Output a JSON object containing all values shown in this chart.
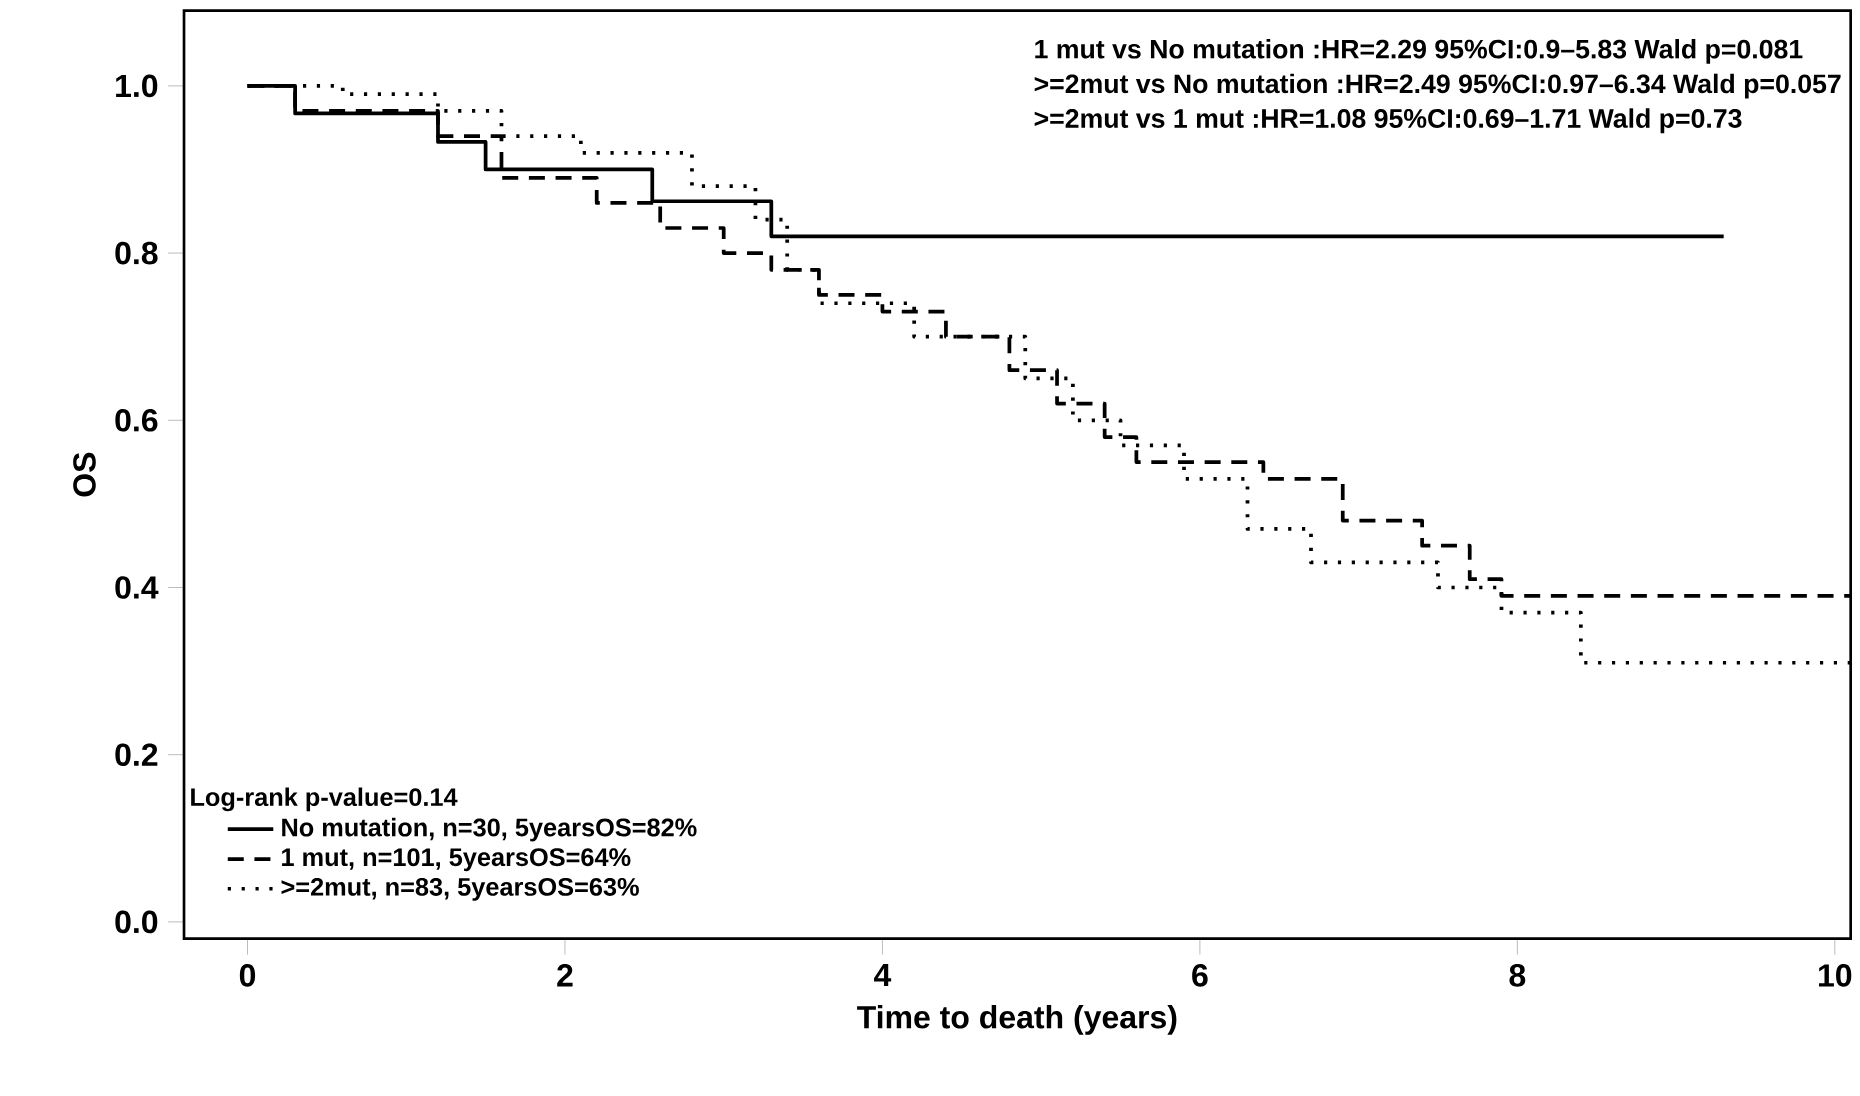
{
  "chart_data": {
    "type": "step",
    "xlabel": "Time to death (years)",
    "ylabel": "OS",
    "xlim": [
      -0.4,
      10.1
    ],
    "ylim": [
      -0.02,
      1.09
    ],
    "xticks": [
      0,
      2,
      4,
      6,
      8,
      10
    ],
    "yticks": [
      {
        "value": 0,
        "label": "0.0"
      },
      {
        "value": 0.2,
        "label": "0.2"
      },
      {
        "value": 0.4,
        "label": "0.4"
      },
      {
        "value": 0.6,
        "label": "0.6"
      },
      {
        "value": 0.8,
        "label": "0.8"
      },
      {
        "value": 1,
        "label": "1.0"
      }
    ],
    "legend": "bottom left",
    "legend_title": "Log-rank p-value=0.14",
    "grid": false,
    "series": [
      {
        "name": "No mutation, n=30, 5yearsOS=82%",
        "color": "#000000",
        "line_style": "solid",
        "x": [
          0,
          0.3,
          1.2,
          1.5,
          2.55,
          3.3,
          9.3
        ],
        "values": [
          1,
          0.967,
          0.933,
          0.9,
          0.862,
          0.82,
          0.82
        ]
      },
      {
        "name": "1 mut, n=101, 5yearsOS=64%",
        "color": "#000000",
        "line_style": "dashed",
        "x": [
          0,
          0.3,
          1.2,
          1.6,
          2.2,
          2.6,
          3.0,
          3.3,
          3.6,
          4.0,
          4.4,
          4.8,
          5.1,
          5.4,
          5.6,
          6.4,
          6.9,
          7.4,
          7.7,
          7.9,
          10.1
        ],
        "values": [
          1,
          0.97,
          0.94,
          0.89,
          0.86,
          0.83,
          0.8,
          0.78,
          0.75,
          0.73,
          0.7,
          0.66,
          0.62,
          0.58,
          0.55,
          0.53,
          0.48,
          0.45,
          0.41,
          0.39,
          0.39
        ]
      },
      {
        "name": ">=2mut, n=83, 5yearsOS=63%",
        "color": "#000000",
        "line_style": "dotted",
        "x": [
          0,
          0.6,
          1.2,
          1.6,
          2.1,
          2.8,
          3.2,
          3.4,
          3.6,
          4.2,
          4.9,
          5.2,
          5.5,
          5.9,
          6.3,
          6.7,
          7.5,
          7.9,
          8.4,
          10.1
        ],
        "values": [
          1,
          0.99,
          0.97,
          0.94,
          0.92,
          0.88,
          0.84,
          0.78,
          0.74,
          0.7,
          0.65,
          0.6,
          0.57,
          0.53,
          0.47,
          0.43,
          0.4,
          0.37,
          0.31,
          0.31
        ]
      }
    ],
    "annotations": [
      "1 mut vs No mutation :HR=2.29 95%CI:0.9–5.83 Wald p=0.081",
      ">=2mut vs No mutation :HR=2.49 95%CI:0.97–6.34 Wald p=0.057",
      ">=2mut vs 1 mut :HR=1.08 95%CI:0.69–1.71 Wald p=0.73"
    ]
  }
}
